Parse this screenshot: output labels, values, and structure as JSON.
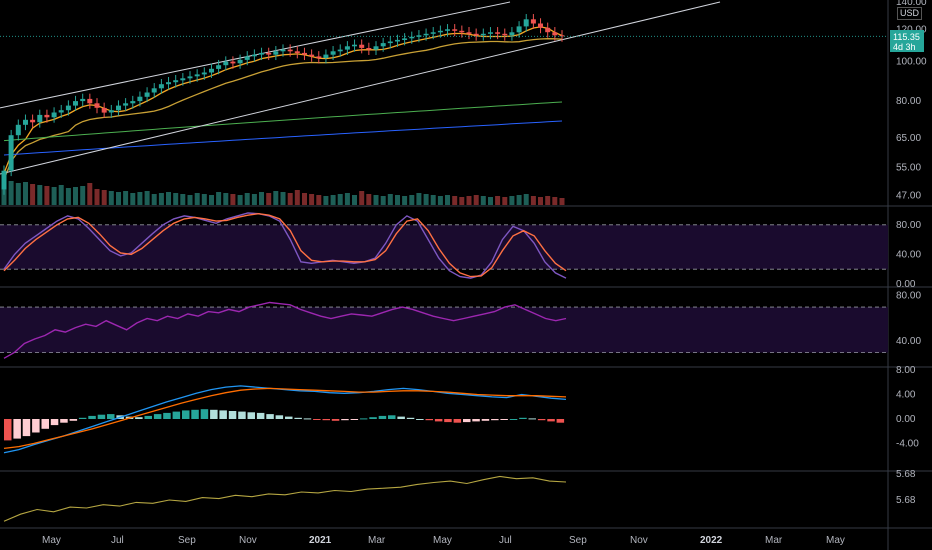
{
  "scale": {
    "currency": "USD",
    "last_price": "115.35",
    "countdown": "4d 3h"
  },
  "colors": {
    "background": "#000000",
    "up": "#26a69a",
    "down": "#ef5350",
    "stoch_k": "#7e57c2",
    "stoch_d": "#ff7043",
    "rsi": "#9c27b0",
    "macd": "#2196f3",
    "signal": "#ff6d00",
    "osc": "#b5a642",
    "ma_fast": "#f5a623",
    "ma_mid": "#c8a035",
    "ma_green": "#4caf50",
    "ma_blue": "#2962ff",
    "channel": "#d1d4dc"
  },
  "chart_data": [
    {
      "type": "candlestick",
      "panel": "price",
      "y_scale": "log",
      "ylim": [
        45,
        140
      ],
      "y_ticks": [
        "140.00",
        "120.00",
        "100.00",
        "80.00",
        "65.00",
        "55.00",
        "47.00"
      ],
      "x_ticks": [
        "May",
        "Jul",
        "Sep",
        "Nov",
        "2021",
        "Mar",
        "May",
        "Jul",
        "Sep",
        "Nov",
        "2022",
        "Mar",
        "May"
      ],
      "series": [
        {
          "name": "",
          "kind": "ohlc_weekly",
          "close": [
            54,
            66,
            70,
            72,
            71,
            74,
            73,
            75,
            76,
            78,
            80,
            81,
            79,
            77,
            75,
            76,
            78,
            79,
            80,
            82,
            84,
            86,
            88,
            89,
            90,
            91,
            92,
            93,
            94,
            96,
            98,
            100,
            99,
            101,
            103,
            104,
            105,
            104,
            106,
            107,
            106,
            105,
            104,
            103,
            102,
            104,
            106,
            107,
            109,
            110,
            108,
            107,
            109,
            111,
            112,
            113,
            114,
            115,
            116,
            117,
            118,
            119,
            120,
            119,
            118,
            117,
            116,
            117,
            118,
            117,
            116,
            118,
            122,
            127,
            124,
            121,
            118,
            116,
            115.35
          ]
        }
      ],
      "volume": [
        26,
        24,
        22,
        23,
        21,
        20,
        19,
        18,
        20,
        17,
        18,
        19,
        22,
        16,
        15,
        14,
        13,
        14,
        12,
        13,
        14,
        11,
        12,
        13,
        12,
        11,
        10,
        12,
        11,
        10,
        13,
        12,
        11,
        10,
        12,
        11,
        13,
        12,
        14,
        13,
        12,
        15,
        12,
        11,
        10,
        9,
        10,
        11,
        12,
        10,
        14,
        11,
        10,
        9,
        11,
        10,
        9,
        10,
        12,
        11,
        10,
        9,
        10,
        9,
        8,
        9,
        10,
        9,
        8,
        9,
        8,
        9,
        10,
        11,
        9,
        8,
        9,
        8,
        7
      ],
      "last_price": 115.35
    },
    {
      "type": "line",
      "panel": "stochastic",
      "ylim": [
        0,
        100
      ],
      "y_ticks": [
        "80.00",
        "40.00",
        "0.00"
      ],
      "bands": [
        20,
        80
      ],
      "series": [
        {
          "name": "",
          "values": [
            20,
            40,
            55,
            65,
            75,
            85,
            92,
            88,
            75,
            60,
            45,
            38,
            42,
            55,
            68,
            80,
            88,
            92,
            90,
            86,
            82,
            88,
            92,
            96,
            95,
            92,
            85,
            60,
            30,
            28,
            30,
            32,
            30,
            28,
            30,
            35,
            55,
            80,
            92,
            85,
            60,
            35,
            18,
            10,
            8,
            12,
            30,
            60,
            78,
            72,
            55,
            30,
            15,
            8
          ]
        },
        {
          "name": "",
          "values": [
            18,
            32,
            48,
            60,
            70,
            80,
            88,
            90,
            82,
            68,
            52,
            42,
            40,
            48,
            60,
            72,
            82,
            88,
            90,
            88,
            85,
            86,
            90,
            93,
            95,
            93,
            88,
            72,
            45,
            32,
            30,
            31,
            31,
            30,
            30,
            33,
            45,
            68,
            85,
            88,
            72,
            48,
            28,
            15,
            10,
            11,
            22,
            45,
            65,
            72,
            65,
            45,
            28,
            18
          ]
        }
      ]
    },
    {
      "type": "line",
      "panel": "rsi",
      "ylim": [
        20,
        85
      ],
      "y_ticks": [
        "80.00",
        "40.00"
      ],
      "bands": [
        30,
        70
      ],
      "series": [
        {
          "name": "",
          "values": [
            25,
            30,
            38,
            42,
            45,
            50,
            48,
            52,
            55,
            53,
            58,
            54,
            50,
            56,
            60,
            58,
            62,
            60,
            64,
            62,
            66,
            65,
            68,
            66,
            70,
            72,
            74,
            73,
            72,
            68,
            65,
            62,
            60,
            62,
            64,
            63,
            62,
            65,
            68,
            70,
            68,
            65,
            62,
            60,
            58,
            60,
            62,
            64,
            66,
            70,
            72,
            68,
            64,
            60,
            58,
            60
          ]
        }
      ]
    },
    {
      "type": "bar+line",
      "panel": "macd",
      "ylim": [
        -8,
        8
      ],
      "y_ticks": [
        "8.00",
        "4.00",
        "0.00",
        "-4.00"
      ],
      "series": [
        {
          "name": "",
          "kind": "histogram",
          "values": [
            -3.5,
            -3.2,
            -2.8,
            -2.2,
            -1.6,
            -1.0,
            -0.6,
            -0.3,
            0.2,
            0.5,
            0.7,
            0.8,
            0.6,
            0.4,
            0.3,
            0.5,
            0.8,
            1.0,
            1.2,
            1.4,
            1.5,
            1.6,
            1.5,
            1.4,
            1.3,
            1.2,
            1.1,
            1.0,
            0.8,
            0.6,
            0.4,
            0.2,
            0.1,
            -0.1,
            -0.2,
            -0.3,
            -0.2,
            -0.1,
            0.1,
            0.3,
            0.5,
            0.6,
            0.4,
            0.2,
            0.0,
            -0.2,
            -0.4,
            -0.5,
            -0.6,
            -0.5,
            -0.4,
            -0.3,
            -0.2,
            -0.1,
            0.0,
            0.2,
            0.1,
            -0.2,
            -0.4,
            -0.6
          ]
        },
        {
          "name": "",
          "kind": "macd",
          "values": [
            -5.5,
            -5.0,
            -4.2,
            -3.5,
            -2.8,
            -2.0,
            -1.2,
            -0.4,
            0.4,
            1.2,
            2.0,
            2.8,
            3.5,
            4.2,
            4.8,
            5.2,
            5.4,
            5.2,
            5.0,
            4.8,
            4.6,
            4.5,
            4.3,
            4.2,
            4.3,
            4.5,
            4.8,
            5.0,
            4.8,
            4.5,
            4.2,
            4.0,
            3.8,
            3.6,
            3.5,
            4.0,
            3.7,
            3.4,
            3.2
          ]
        },
        {
          "name": "",
          "kind": "signal",
          "values": [
            -4.8,
            -4.5,
            -4.0,
            -3.4,
            -2.8,
            -2.2,
            -1.6,
            -0.9,
            -0.2,
            0.5,
            1.2,
            1.9,
            2.6,
            3.2,
            3.8,
            4.3,
            4.7,
            4.9,
            5.0,
            4.9,
            4.8,
            4.7,
            4.6,
            4.5,
            4.4,
            4.4,
            4.5,
            4.6,
            4.6,
            4.5,
            4.4,
            4.2,
            4.0,
            3.9,
            3.8,
            3.8,
            3.8,
            3.7,
            3.6
          ]
        }
      ]
    },
    {
      "type": "line",
      "panel": "oscillator",
      "y_ticks": [
        "5.68",
        "5.68"
      ],
      "series": [
        {
          "name": "",
          "values": [
            5.6,
            5.615,
            5.625,
            5.62,
            5.63,
            5.628,
            5.635,
            5.632,
            5.64,
            5.638,
            5.645,
            5.642,
            5.65,
            5.648,
            5.655,
            5.652,
            5.658,
            5.656,
            5.662,
            5.66,
            5.665,
            5.663,
            5.668,
            5.67,
            5.672,
            5.678,
            5.682,
            5.685,
            5.68,
            5.688,
            5.695,
            5.69,
            5.692,
            5.685,
            5.683
          ]
        }
      ]
    }
  ]
}
